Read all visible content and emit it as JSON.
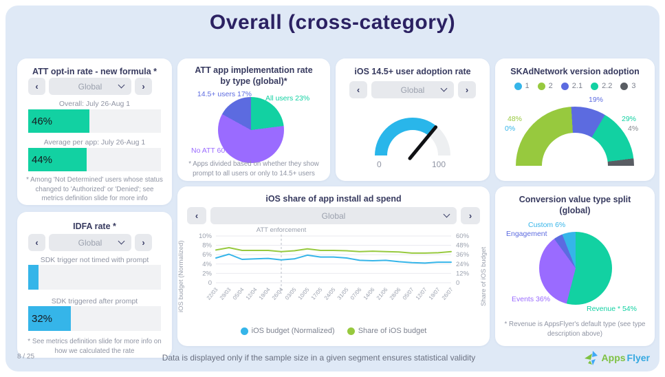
{
  "slide": {
    "title": "Overall (cross-category)"
  },
  "ui": {
    "prev_icon": "‹",
    "next_icon": "›"
  },
  "footer": {
    "page": "8 / 25",
    "note": "Data is displayed only if the sample size in a given segment ensures statistical validity",
    "logo": {
      "apps": "Apps",
      "flyer": "Flyer"
    }
  },
  "panels": {
    "att_optin": {
      "title": "ATT opt-in rate - new formula *",
      "selector": {
        "value": "Global"
      },
      "bars": [
        {
          "label": "Overall: July 26-Aug 1",
          "value_label": "46%",
          "pct": 46,
          "color": "#12d1a2"
        },
        {
          "label": "Average per app: July 26-Aug 1",
          "value_label": "44%",
          "pct": 44,
          "color": "#12d1a2"
        }
      ],
      "footnote": "* Among 'Not Determined' users whose status changed to 'Authorized' or 'Denied'; see metrics definition slide for more info"
    },
    "idfa": {
      "title": "IDFA rate *",
      "selector": {
        "value": "Global"
      },
      "bars": [
        {
          "label": "SDK trigger not timed with prompt",
          "value_label": "",
          "pct": 8,
          "color": "#35b5e9"
        },
        {
          "label": "SDK triggered after prompt",
          "value_label": "32%",
          "pct": 32,
          "color": "#35b5e9"
        }
      ],
      "footnote": "* See metrics definition slide for more info on how we calculated the rate"
    },
    "att_impl": {
      "title": "ATT app implementation rate by type (global)*",
      "pie": {
        "half": false,
        "from": 0,
        "slices": [
          {
            "name": "All users",
            "pct": 23,
            "color": "#12d1a2"
          },
          {
            "name": "No ATT",
            "pct": 60,
            "color": "#9a6bff"
          },
          {
            "name": "14.5+ users",
            "pct": 17,
            "color": "#5c6be0"
          }
        ]
      },
      "labels": {
        "users145": {
          "text": "14.5+ users 17%",
          "color": "#5c6be0"
        },
        "all": {
          "text": "All users 23%",
          "color": "#12d1a2"
        },
        "noatt": {
          "text": "No ATT 60%",
          "color": "#9a6bff"
        }
      },
      "footnote": "* Apps divided based on whether they show prompt to all users or only to 14.5+ users"
    },
    "gauge": {
      "title": "iOS 14.5+ user adoption rate",
      "selector": {
        "value": "Global"
      },
      "min": "0",
      "max": "100",
      "value": 72,
      "arc": {
        "half": true,
        "from": 270,
        "slices": [
          {
            "pct": 72,
            "color": "#29b6ea"
          },
          {
            "pct": 28,
            "color": "#edeff1"
          }
        ]
      }
    },
    "skad": {
      "title": "SKAdNetwork version adoption",
      "legend": [
        {
          "label": "1",
          "color": "#35b5e9"
        },
        {
          "label": "2",
          "color": "#97c93e"
        },
        {
          "label": "2.1",
          "color": "#5c6be0"
        },
        {
          "label": "2.2",
          "color": "#12d1a2"
        },
        {
          "label": "3",
          "color": "#595d63"
        }
      ],
      "arc": {
        "half": true,
        "from": 270,
        "slices": [
          {
            "name": "1",
            "pct": 0,
            "color": "#35b5e9"
          },
          {
            "name": "2",
            "pct": 48,
            "color": "#97c93e"
          },
          {
            "name": "2.1",
            "pct": 19,
            "color": "#5c6be0"
          },
          {
            "name": "2.2",
            "pct": 29,
            "color": "#12d1a2"
          },
          {
            "name": "3",
            "pct": 4,
            "color": "#595d63"
          }
        ]
      },
      "labels": {
        "l48": {
          "text": "48%",
          "color": "#97c93e"
        },
        "l0": {
          "text": "0%",
          "color": "#35b5e9"
        },
        "l19": {
          "text": "19%",
          "color": "#5c6be0"
        },
        "l29": {
          "text": "29%",
          "color": "#12d1a2"
        },
        "l4": {
          "text": "4%",
          "color": "#84878c"
        }
      }
    },
    "ad_spend": {
      "title": "iOS share of app install ad spend",
      "selector": {
        "value": "Global"
      },
      "left_axis_title": "iOS budget (Normalized)",
      "right_axis_title": "Share of iOS budget",
      "legend": [
        {
          "label": "iOS budget (Normalized)",
          "color": "#35b5e9"
        },
        {
          "label": "Share of iOS budget",
          "color": "#97c93e"
        }
      ]
    },
    "conversion": {
      "title": "Conversion value type split (global)",
      "pie": {
        "half": false,
        "from": 0,
        "slices": [
          {
            "name": "Revenue *",
            "pct": 54,
            "color": "#12d1a2"
          },
          {
            "name": "Events",
            "pct": 36,
            "color": "#9a6bff"
          },
          {
            "name": "Engagement",
            "pct": 4,
            "color": "#5c6be0"
          },
          {
            "name": "Custom",
            "pct": 6,
            "color": "#35b5e9"
          }
        ]
      },
      "labels": {
        "custom": {
          "text": "Custom 6%",
          "color": "#35b5e9"
        },
        "engagement": {
          "text": "Engagement",
          "color": "#5c6be0"
        },
        "events": {
          "text": "Events 36%",
          "color": "#9a6bff"
        },
        "revenue": {
          "text": "Revenue * 54%",
          "color": "#12d1a2"
        }
      },
      "footnote": "* Revenue is AppsFlyer's default type (see type description above)"
    }
  },
  "chart_data": [
    {
      "type": "bar",
      "title": "ATT opt-in rate - new formula *",
      "categories": [
        "Overall: July 26-Aug 1",
        "Average per app: July 26-Aug 1"
      ],
      "values": [
        46,
        44
      ],
      "unit": "%"
    },
    {
      "type": "bar",
      "title": "IDFA rate *",
      "categories": [
        "SDK trigger not timed with prompt",
        "SDK triggered after prompt"
      ],
      "values": [
        8,
        32
      ],
      "unit": "%"
    },
    {
      "type": "pie",
      "title": "ATT app implementation rate by type (global)*",
      "labels": [
        "All users",
        "No ATT",
        "14.5+ users"
      ],
      "values": [
        23,
        60,
        17
      ]
    },
    {
      "type": "gauge",
      "title": "iOS 14.5+ user adoption rate",
      "min": 0,
      "max": 100,
      "value": 72
    },
    {
      "type": "pie",
      "subtype": "half-donut",
      "title": "SKAdNetwork version adoption",
      "labels": [
        "1",
        "2",
        "2.1",
        "2.2",
        "3"
      ],
      "values": [
        0,
        48,
        19,
        29,
        4
      ]
    },
    {
      "type": "line",
      "title": "iOS share of app install ad spend",
      "x": [
        "22/03",
        "29/03",
        "05/04",
        "12/04",
        "19/04",
        "26/04",
        "03/05",
        "10/05",
        "17/05",
        "24/05",
        "31/05",
        "07/06",
        "14/06",
        "21/06",
        "28/06",
        "05/07",
        "12/07",
        "19/07",
        "26/07"
      ],
      "series": [
        {
          "name": "iOS budget (Normalized)",
          "axis": "left",
          "color": "#35b5e9",
          "values": [
            5.3,
            6.1,
            5.0,
            5.1,
            5.2,
            4.9,
            5.1,
            5.9,
            5.5,
            5.5,
            5.3,
            4.8,
            4.7,
            4.8,
            4.5,
            4.3,
            4.2,
            4.4,
            4.4
          ]
        },
        {
          "name": "Share of iOS budget",
          "axis": "right",
          "color": "#97c93e",
          "values": [
            42,
            45,
            41.5,
            41.5,
            41.5,
            40,
            41,
            43.5,
            41.5,
            41.5,
            41,
            40,
            40.5,
            40,
            39.5,
            38,
            38,
            38.5,
            40
          ]
        }
      ],
      "left_axis": {
        "label": "iOS budget (Normalized)",
        "max": 10,
        "ticks": [
          "10%",
          "8%",
          "6%",
          "4%",
          "2%",
          "0"
        ]
      },
      "right_axis": {
        "label": "Share of iOS budget",
        "max": 60,
        "ticks": [
          "60%",
          "48%",
          "36%",
          "24%",
          "12%",
          "0"
        ]
      },
      "annotation": "ATT enforcement",
      "annotation_index": 5,
      "grid": true,
      "legend_position": "bottom"
    },
    {
      "type": "pie",
      "title": "Conversion value type split (global)",
      "labels": [
        "Revenue *",
        "Events",
        "Engagement",
        "Custom"
      ],
      "values": [
        54,
        36,
        4,
        6
      ]
    }
  ]
}
